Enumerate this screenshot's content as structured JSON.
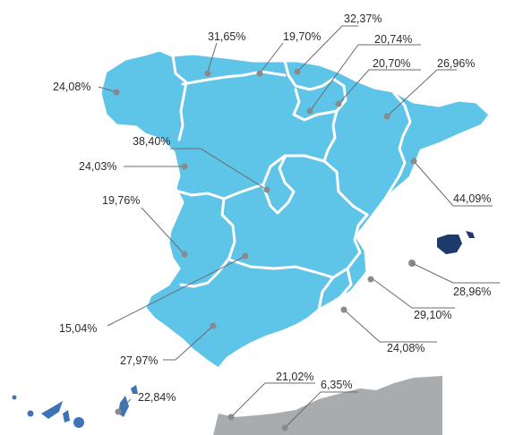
{
  "colors": {
    "mainland": "#5ec4e8",
    "balearic": "#1d3a6b",
    "canary": "#3f73b8",
    "morocco": "#a9acae",
    "leader": "#6b6b6b",
    "marker": "#8a8a8a",
    "text": "#2b2b2b"
  },
  "regions": [
    {
      "id": "galicia",
      "value": "24,08%"
    },
    {
      "id": "asturias",
      "value": "31,65%"
    },
    {
      "id": "cantabria",
      "value": "19,70%"
    },
    {
      "id": "pais-vasco",
      "value": "32,37%"
    },
    {
      "id": "la-rioja",
      "value": "20,74%"
    },
    {
      "id": "navarra",
      "value": "20,70%"
    },
    {
      "id": "aragon",
      "value": "26,96%"
    },
    {
      "id": "madrid",
      "value": "38,40%"
    },
    {
      "id": "castilla-leon",
      "value": "24,03%"
    },
    {
      "id": "extremadura",
      "value": "19,76%"
    },
    {
      "id": "cataluna",
      "value": "44,09%"
    },
    {
      "id": "baleares",
      "value": "28,96%"
    },
    {
      "id": "valencia",
      "value": "29,10%"
    },
    {
      "id": "castilla-la-mancha",
      "value": "15,04%"
    },
    {
      "id": "murcia",
      "value": "24,08%"
    },
    {
      "id": "andalucia",
      "value": "27,97%"
    },
    {
      "id": "canarias",
      "value": "22,84%"
    },
    {
      "id": "ceuta",
      "value": "21,02%"
    },
    {
      "id": "melilla",
      "value": "6,35%"
    }
  ]
}
